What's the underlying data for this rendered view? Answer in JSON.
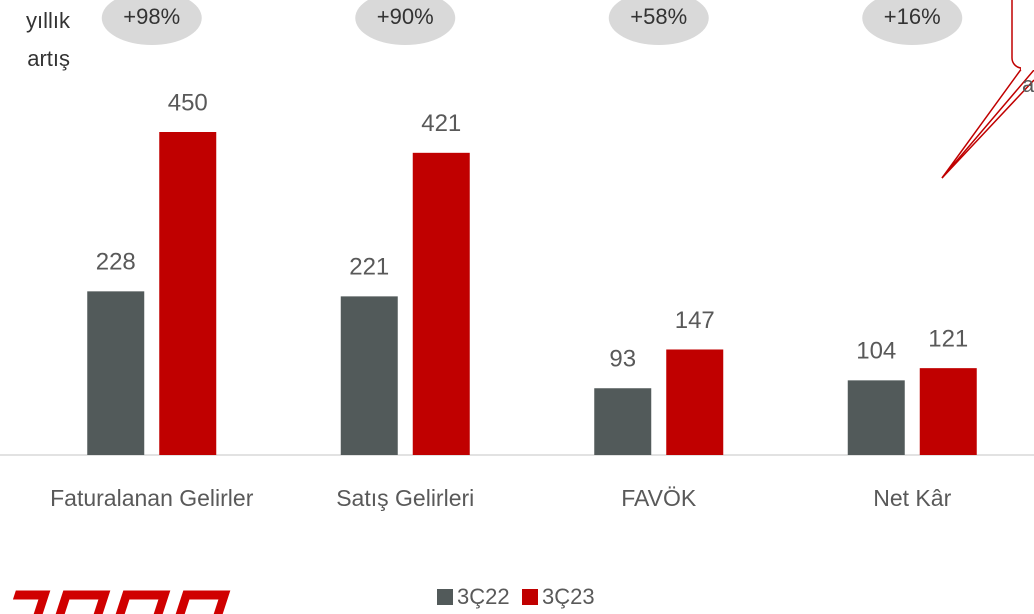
{
  "chart_data": {
    "type": "bar",
    "categories": [
      "Faturalanan Gelirler",
      "Satış Gelirleri",
      "FAVÖK",
      "Net Kâr"
    ],
    "series": [
      {
        "name": "3Ç22",
        "color": "#525a5a",
        "values": [
          228,
          221,
          93,
          104
        ]
      },
      {
        "name": "3Ç23",
        "color": "#c00000",
        "values": [
          450,
          421,
          147,
          121
        ]
      }
    ],
    "ylim": [
      0,
      450
    ],
    "growth_title": [
      "yıllık",
      "artış"
    ],
    "growth": [
      98,
      90,
      58,
      16
    ],
    "growth_labels": [
      "+98%",
      "+90%",
      "+58%",
      "+16%"
    ],
    "callout_text": "a"
  }
}
